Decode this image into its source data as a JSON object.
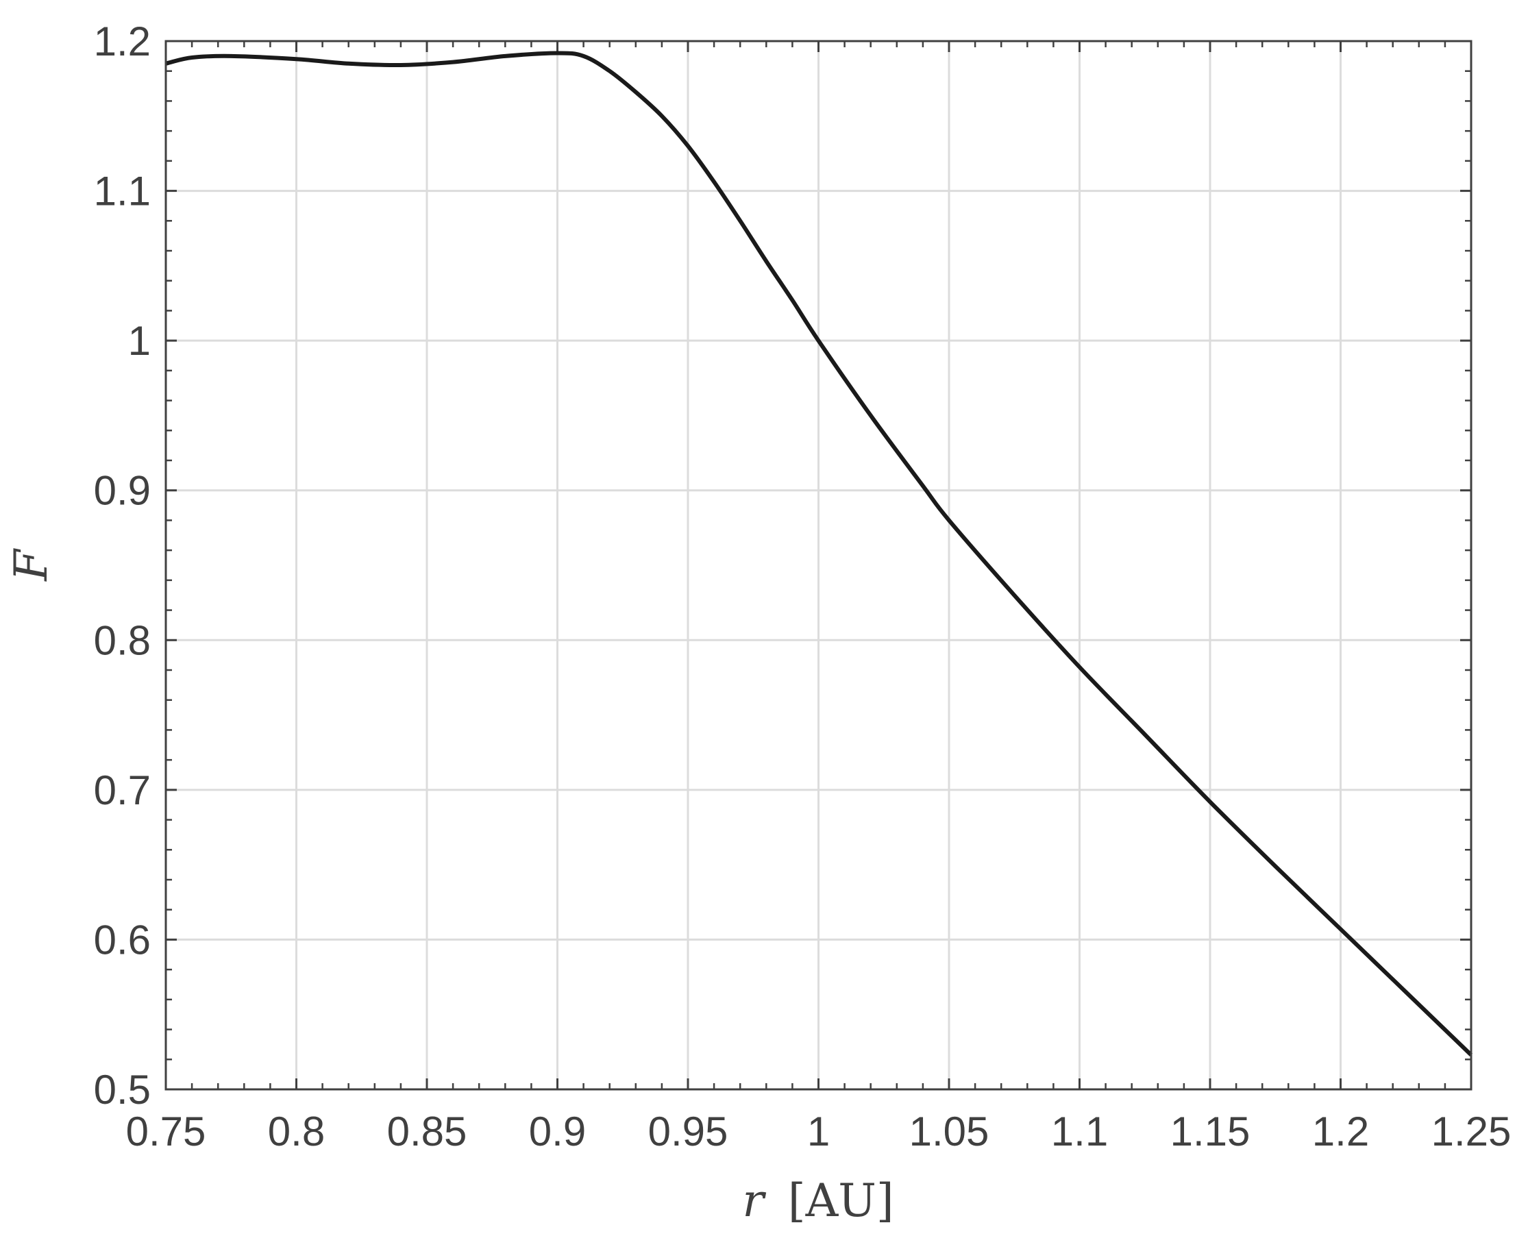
{
  "chart_data": {
    "type": "line",
    "title": "",
    "xlabel": "r [AU]",
    "xlabel_var": "r",
    "xlabel_unit": "[AU]",
    "ylabel": "F",
    "xlim": [
      0.75,
      1.25
    ],
    "ylim": [
      0.5,
      1.2
    ],
    "xticks": [
      "0.75",
      "0.8",
      "0.85",
      "0.9",
      "0.95",
      "1",
      "1.05",
      "1.1",
      "1.15",
      "1.2",
      "1.25"
    ],
    "yticks": [
      "0.5",
      "0.6",
      "0.7",
      "0.8",
      "0.9",
      "1",
      "1.1",
      "1.2"
    ],
    "grid": true,
    "line_color": "#1a1a1a",
    "axis_color": "#404040",
    "grid_color": "#dcdcdc",
    "series": [
      {
        "x": [
          0.75,
          0.76,
          0.775,
          0.8,
          0.82,
          0.84,
          0.86,
          0.88,
          0.9,
          0.91,
          0.92,
          0.93,
          0.94,
          0.95,
          0.96,
          0.97,
          0.98,
          0.99,
          1.0,
          1.02,
          1.04,
          1.05,
          1.075,
          1.1,
          1.125,
          1.15,
          1.175,
          1.2,
          1.225,
          1.25
        ],
        "y": [
          1.185,
          1.189,
          1.19,
          1.188,
          1.185,
          1.184,
          1.186,
          1.19,
          1.192,
          1.19,
          1.18,
          1.166,
          1.15,
          1.13,
          1.106,
          1.08,
          1.053,
          1.027,
          1.0,
          0.95,
          0.903,
          0.88,
          0.83,
          0.782,
          0.737,
          0.692,
          0.649,
          0.607,
          0.565,
          0.523
        ]
      }
    ]
  }
}
